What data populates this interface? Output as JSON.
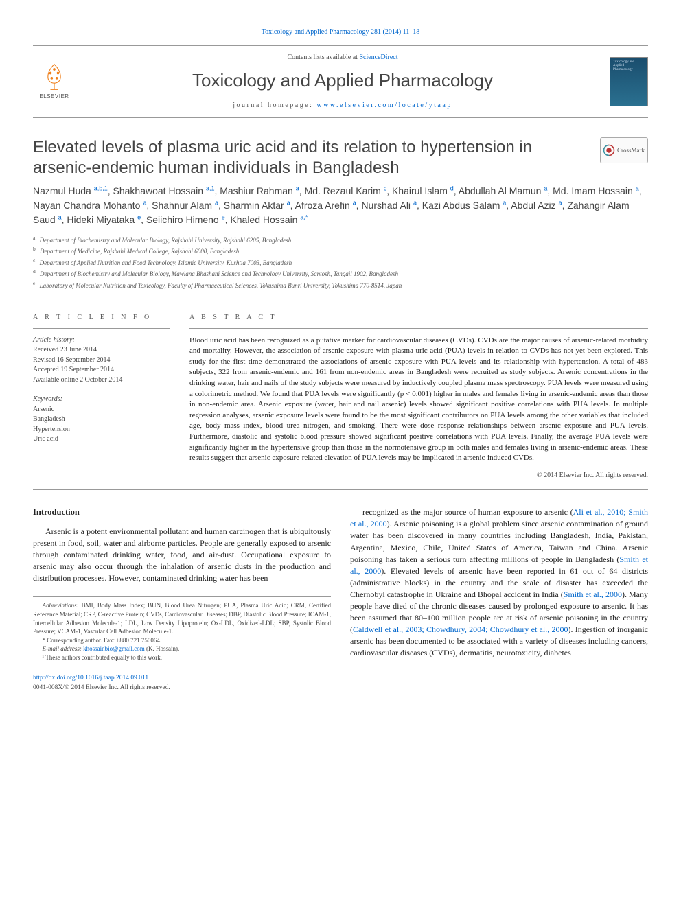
{
  "top_reference": {
    "prefix": "",
    "journal_abbrev": "Toxicology and Applied Pharmacology 281 (2014) 11–18"
  },
  "masthead": {
    "contents_prefix": "Contents lists available at ",
    "contents_link": "ScienceDirect",
    "journal_name": "Toxicology and Applied Pharmacology",
    "homepage_prefix": "journal homepage: ",
    "homepage_url": "www.elsevier.com/locate/ytaap",
    "elsevier_label": "ELSEVIER",
    "cover_text": "Toxicology and Applied Pharmacology"
  },
  "crossmark_label": "CrossMark",
  "article_title": "Elevated levels of plasma uric acid and its relation to hypertension in arsenic-endemic human individuals in Bangladesh",
  "authors_html": "Nazmul Huda <sup>a,b,1</sup>, Shakhawoat Hossain <sup>a,1</sup>, Mashiur Rahman <sup>a</sup>, Md. Rezaul Karim <sup>c</sup>, Khairul Islam <sup>d</sup>, Abdullah Al Mamun <sup>a</sup>, Md. Imam Hossain <sup>a</sup>, Nayan Chandra Mohanto <sup>a</sup>, Shahnur Alam <sup>a</sup>, Sharmin Aktar <sup>a</sup>, Afroza Arefin <sup>a</sup>, Nurshad Ali <sup>a</sup>, Kazi Abdus Salam <sup>a</sup>, Abdul Aziz <sup>a</sup>, Zahangir Alam Saud <sup>a</sup>, Hideki Miyataka <sup>e</sup>, Seiichiro Himeno <sup>e</sup>, Khaled Hossain <sup>a,*</sup>",
  "affiliations": [
    {
      "sup": "a",
      "text": "Department of Biochemistry and Molecular Biology, Rajshahi University, Rajshahi 6205, Bangladesh"
    },
    {
      "sup": "b",
      "text": "Department of Medicine, Rajshahi Medical College, Rajshahi 6000, Bangladesh"
    },
    {
      "sup": "c",
      "text": "Department of Applied Nutrition and Food Technology, Islamic University, Kushtia 7003, Bangladesh"
    },
    {
      "sup": "d",
      "text": "Department of Biochemistry and Molecular Biology, Mawlana Bhashani Science and Technology University, Santosh, Tangail 1902, Bangladesh"
    },
    {
      "sup": "e",
      "text": "Laboratory of Molecular Nutrition and Toxicology, Faculty of Pharmaceutical Sciences, Tokushima Bunri University, Tokushima 770-8514, Japan"
    }
  ],
  "article_info": {
    "heading": "A R T I C L E   I N F O",
    "history_label": "Article history:",
    "history": [
      "Received 23 June 2014",
      "Revised 16 September 2014",
      "Accepted 19 September 2014",
      "Available online 2 October 2014"
    ],
    "keywords_label": "Keywords:",
    "keywords": [
      "Arsenic",
      "Bangladesh",
      "Hypertension",
      "Uric acid"
    ]
  },
  "abstract": {
    "heading": "A B S T R A C T",
    "text": "Blood uric acid has been recognized as a putative marker for cardiovascular diseases (CVDs). CVDs are the major causes of arsenic-related morbidity and mortality. However, the association of arsenic exposure with plasma uric acid (PUA) levels in relation to CVDs has not yet been explored. This study for the first time demonstrated the associations of arsenic exposure with PUA levels and its relationship with hypertension. A total of 483 subjects, 322 from arsenic-endemic and 161 from non-endemic areas in Bangladesh were recruited as study subjects. Arsenic concentrations in the drinking water, hair and nails of the study subjects were measured by inductively coupled plasma mass spectroscopy. PUA levels were measured using a colorimetric method. We found that PUA levels were significantly (p < 0.001) higher in males and females living in arsenic-endemic areas than those in non-endemic area. Arsenic exposure (water, hair and nail arsenic) levels showed significant positive correlations with PUA levels. In multiple regression analyses, arsenic exposure levels were found to be the most significant contributors on PUA levels among the other variables that included age, body mass index, blood urea nitrogen, and smoking. There were dose–response relationships between arsenic exposure and PUA levels. Furthermore, diastolic and systolic blood pressure showed significant positive correlations with PUA levels. Finally, the average PUA levels were significantly higher in the hypertensive group than those in the normotensive group in both males and females living in arsenic-endemic areas. These results suggest that arsenic exposure-related elevation of PUA levels may be implicated in arsenic-induced CVDs.",
    "copyright": "© 2014 Elsevier Inc. All rights reserved."
  },
  "body": {
    "intro_heading": "Introduction",
    "left_para": "Arsenic is a potent environmental pollutant and human carcinogen that is ubiquitously present in food, soil, water and airborne particles. People are generally exposed to arsenic through contaminated drinking water, food, and air-dust. Occupational exposure to arsenic may also occur through the inhalation of arsenic dusts in the production and distribution processes. However, contaminated drinking water has been",
    "right_para_1_pre": "recognized as the major source of human exposure to arsenic (",
    "right_cite_1": "Ali et al., 2010; Smith et al., 2000",
    "right_para_1_post": "). Arsenic poisoning is a global problem since arsenic contamination of ground water has been discovered in many countries including Bangladesh, India, Pakistan, Argentina, Mexico, Chile, United States of America, Taiwan and China. Arsenic poisoning has taken a serious turn affecting millions of people in Bangladesh (",
    "right_cite_2": "Smith et al., 2000",
    "right_para_2_post": "). Elevated levels of arsenic have been reported in 61 out of 64 districts (administrative blocks) in the country and the scale of disaster has exceeded the Chernobyl catastrophe in Ukraine and Bhopal accident in India (",
    "right_cite_3": "Smith et al., 2000",
    "right_para_3_post": "). Many people have died of the chronic diseases caused by prolonged exposure to arsenic. It has been assumed that 80–100 million people are at risk of arsenic poisoning in the country (",
    "right_cite_4": "Caldwell et al., 2003; Chowdhury, 2004; Chowdhury et al., 2000",
    "right_para_4_post": "). Ingestion of inorganic arsenic has been documented to be associated with a variety of diseases including cancers, cardiovascular diseases (CVDs), dermatitis, neurotoxicity, diabetes"
  },
  "footnotes": {
    "abbrev_label": "Abbreviations:",
    "abbrev_text": " BMI, Body Mass Index; BUN, Blood Urea Nitrogen; PUA, Plasma Uric Acid; CRM, Certified Reference Material; CRP, C-reactive Protein; CVDs, Cardiovascular Diseases; DBP, Diastolic Blood Pressure; ICAM-1, Intercellular Adhesion Molecule-1; LDL, Low Density Lipoprotein; Ox-LDL, Oxidized-LDL; SBP, Systolic Blood Pressure; VCAM-1, Vascular Cell Adhesion Molecule-1.",
    "corr_text": "* Corresponding author. Fax: +880 721 750064.",
    "email_label": "E-mail address: ",
    "email": "khossainbio@gmail.com",
    "email_suffix": " (K. Hossain).",
    "equal_text": "¹ These authors contributed equally to this work."
  },
  "doi": {
    "url": "http://dx.doi.org/10.1016/j.taap.2014.09.011",
    "issn_line": "0041-008X/© 2014 Elsevier Inc. All rights reserved."
  },
  "colors": {
    "link": "#0066cc",
    "text": "#222222",
    "muted": "#555555",
    "rule": "#999999",
    "cover_bg_top": "#1a4d6d",
    "cover_bg_bottom": "#2a7090",
    "elsevier_orange": "#ef7f1a"
  }
}
